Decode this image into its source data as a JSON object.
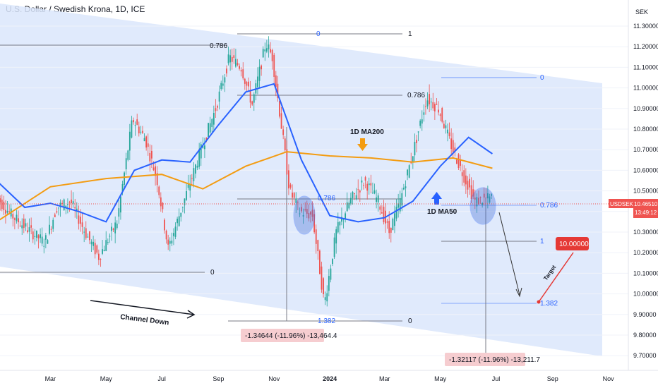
{
  "header": {
    "title": "U.S. Dollar / Swedish Krona, 1D, ICE"
  },
  "price_axis": {
    "currency": "SEK",
    "ticks": [
      "11.30000",
      "11.20000",
      "11.10000",
      "11.00000",
      "10.90000",
      "10.80000",
      "10.70000",
      "10.60000",
      "10.50000",
      "10.40000",
      "10.30000",
      "10.20000",
      "10.10000",
      "10.00000",
      "9.90000",
      "9.80000",
      "9.70000"
    ]
  },
  "time_axis": {
    "ticks": [
      "Mar",
      "May",
      "Jul",
      "Sep",
      "Nov",
      "2024",
      "Mar",
      "May",
      "Jul",
      "Sep",
      "Nov"
    ]
  },
  "price_tag": {
    "symbol": "USDSEK",
    "price": "10.46510",
    "countdown": "13:49:12"
  },
  "target_tag": {
    "value": "10.00000",
    "label": "Target"
  },
  "annotations": {
    "ma200": "1D MA200",
    "ma50": "1D MA50",
    "channel": "Channel Down"
  },
  "fib_labels": {
    "f1_top": "1",
    "f1_786": "0.786",
    "f1_0": "0",
    "f1_0_top": "0",
    "f2_0": "0",
    "f2_786": "0.786",
    "f2_786_b": "0.786",
    "f2_1": "1",
    "f2_1382": "1.382",
    "f2_1382_left": "1.382",
    "f2_0_bot": "0"
  },
  "measurements": {
    "m1": "-1.34644 (-11.96%) -13,464.4",
    "m2": "-1.32117 (-11.96%) -13,211.7"
  },
  "colors": {
    "up": "#26a69a",
    "down": "#ef5350",
    "ma50": "#2962ff",
    "ma200": "#f39c12",
    "channel": "#dbe6fb",
    "target": "#e53935"
  },
  "chart_data": {
    "type": "candlestick",
    "title": "U.S. Dollar / Swedish Krona, 1D, ICE",
    "symbol": "USDSEK",
    "ylim": [
      9.7,
      11.32
    ],
    "last_price": 10.4651,
    "series": [
      {
        "name": "1D MA50",
        "points": [
          {
            "x": "2023-01-01",
            "y": 10.55
          },
          {
            "x": "2023-02-01",
            "y": 10.42
          },
          {
            "x": "2023-03-01",
            "y": 10.44
          },
          {
            "x": "2023-04-01",
            "y": 10.4
          },
          {
            "x": "2023-05-01",
            "y": 10.35
          },
          {
            "x": "2023-06-01",
            "y": 10.6
          },
          {
            "x": "2023-07-01",
            "y": 10.65
          },
          {
            "x": "2023-08-01",
            "y": 10.64
          },
          {
            "x": "2023-09-01",
            "y": 10.82
          },
          {
            "x": "2023-10-01",
            "y": 10.98
          },
          {
            "x": "2023-11-01",
            "y": 11.02
          },
          {
            "x": "2023-12-01",
            "y": 10.65
          },
          {
            "x": "2024-01-01",
            "y": 10.38
          },
          {
            "x": "2024-02-01",
            "y": 10.35
          },
          {
            "x": "2024-03-01",
            "y": 10.37
          },
          {
            "x": "2024-04-01",
            "y": 10.45
          },
          {
            "x": "2024-05-01",
            "y": 10.62
          },
          {
            "x": "2024-06-01",
            "y": 10.76
          },
          {
            "x": "2024-06-27",
            "y": 10.68
          }
        ]
      },
      {
        "name": "1D MA200",
        "points": [
          {
            "x": "2023-01-01",
            "y": 10.35
          },
          {
            "x": "2023-03-01",
            "y": 10.52
          },
          {
            "x": "2023-05-01",
            "y": 10.56
          },
          {
            "x": "2023-07-01",
            "y": 10.58
          },
          {
            "x": "2023-08-15",
            "y": 10.51
          },
          {
            "x": "2023-10-01",
            "y": 10.62
          },
          {
            "x": "2023-11-15",
            "y": 10.69
          },
          {
            "x": "2024-01-01",
            "y": 10.67
          },
          {
            "x": "2024-02-15",
            "y": 10.66
          },
          {
            "x": "2024-04-01",
            "y": 10.64
          },
          {
            "x": "2024-05-15",
            "y": 10.66
          },
          {
            "x": "2024-06-27",
            "y": 10.61
          }
        ]
      }
    ],
    "fibonacci": [
      {
        "level": "0",
        "price": 10.15
      },
      {
        "level": "0.786",
        "price": 11.16
      },
      {
        "level": "1",
        "price": 11.26
      },
      {
        "level": "0",
        "price": 11.05
      },
      {
        "level": "0.786",
        "price": 10.97
      },
      {
        "level": "0.786",
        "price": 10.46
      },
      {
        "level": "1",
        "price": 10.29
      },
      {
        "level": "1.382",
        "price": 9.99
      },
      {
        "level": "0",
        "price": 9.93
      }
    ],
    "target": 10.0,
    "grid": true
  }
}
